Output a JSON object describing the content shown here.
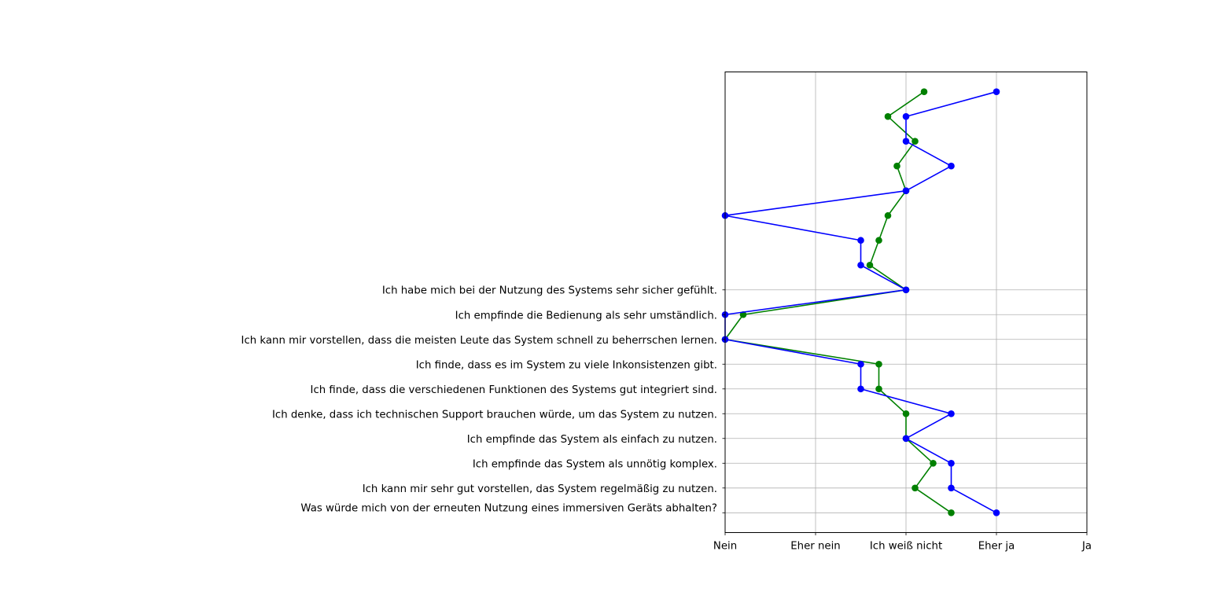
{
  "chart_data": {
    "type": "line",
    "title": "",
    "xlabel": "",
    "ylabel": "",
    "grid": true,
    "legend": "none",
    "x_ticks": [
      "Nein",
      "Eher nein",
      "Ich weiß nicht",
      "Eher ja",
      "Ja"
    ],
    "xlim": [
      0,
      4
    ],
    "ylim": [
      -0.8,
      17.8
    ],
    "y_ticks": [
      {
        "y": 0,
        "label": "Was würde mich von der erneuten Nutzung eines immersiven Geräts abhalten?"
      },
      {
        "y": 1,
        "label": "Ich kann mir sehr gut vorstellen, das System regelmäßig zu nutzen."
      },
      {
        "y": 2,
        "label": "Ich empfinde das System als unnötig komplex."
      },
      {
        "y": 3,
        "label": "Ich empfinde das System als einfach zu nutzen."
      },
      {
        "y": 4,
        "label": "Ich denke, dass ich technischen Support brauchen würde, um das System zu nutzen."
      },
      {
        "y": 5,
        "label": "Ich finde, dass die verschiedenen Funktionen des Systems gut integriert sind."
      },
      {
        "y": 6,
        "label": "Ich finde, dass es im System zu viele Inkonsistenzen gibt."
      },
      {
        "y": 7,
        "label": "Ich kann mir vorstellen, dass die meisten Leute das System schnell zu beherrschen lernen."
      },
      {
        "y": 8,
        "label": "Ich empfinde die Bedienung als sehr umständlich."
      },
      {
        "y": 9,
        "label": "Ich habe mich bei der Nutzung des Systems sehr sicher gefühlt."
      }
    ],
    "series": [
      {
        "color": "#008000",
        "x": [
          2.5,
          2.1,
          2.3,
          2.0,
          2.0,
          1.7,
          1.7,
          0.0,
          0.2,
          2.0,
          1.6,
          1.7,
          1.8,
          2.0,
          1.9,
          2.1,
          1.8,
          2.2
        ],
        "y": [
          0,
          1,
          2,
          3,
          4,
          5,
          6,
          7,
          8,
          9,
          10,
          11,
          12,
          13,
          14,
          15,
          16,
          17
        ]
      },
      {
        "color": "#0000ff",
        "x": [
          3.0,
          2.5,
          2.5,
          2.0,
          2.5,
          1.5,
          1.5,
          0.0,
          0.0,
          2.0,
          1.5,
          1.5,
          0.0,
          2.0,
          2.5,
          2.0,
          2.0,
          3.0
        ],
        "y": [
          0,
          1,
          2,
          3,
          4,
          5,
          6,
          7,
          8,
          9,
          10,
          11,
          12,
          13,
          14,
          15,
          16,
          17
        ]
      }
    ]
  }
}
